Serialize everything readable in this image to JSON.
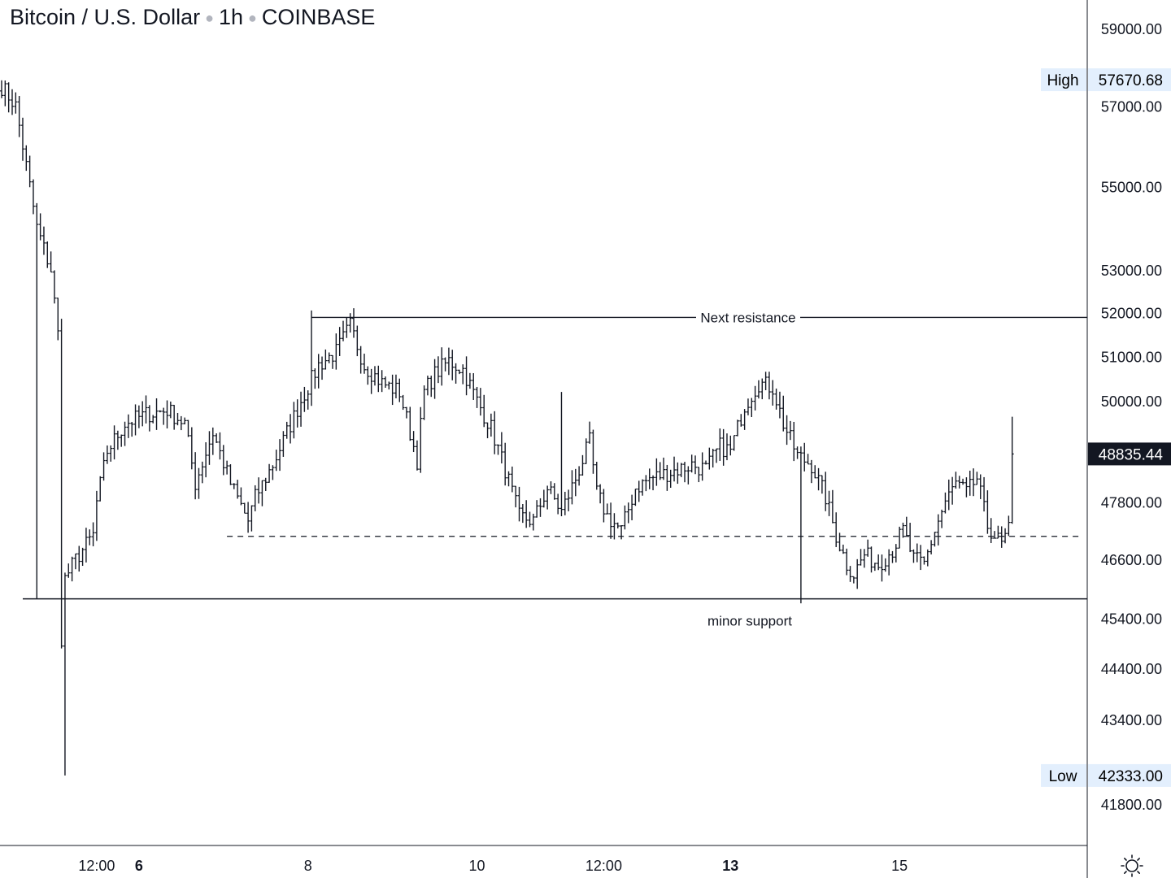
{
  "header": {
    "symbol": "Bitcoin / U.S. Dollar",
    "interval": "1h",
    "exchange": "COINBASE"
  },
  "colors": {
    "bars": "#131722",
    "tag_bg": "#e3effd",
    "last_price_bg": "#131722",
    "last_price_text": "#ffffff"
  },
  "chart_data": {
    "type": "ohlc",
    "title": "Bitcoin / U.S. Dollar · 1h · COINBASE",
    "y_scale": "log",
    "ylim": [
      41000,
      59800
    ],
    "y_ticks": [
      59000,
      57000,
      55000,
      53000,
      52000,
      51000,
      50000,
      47800,
      46600,
      45400,
      44400,
      43400,
      41800
    ],
    "y_tick_labels": [
      "59000.00",
      "57000.00",
      "55000.00",
      "53000.00",
      "52000.00",
      "51000.00",
      "50000.00",
      "47800.00",
      "46600.00",
      "45400.00",
      "44400.00",
      "43400.00",
      "41800.00"
    ],
    "x_ticks": [
      {
        "label": "12:00",
        "bar": 27,
        "bold": false
      },
      {
        "label": "6",
        "bar": 39,
        "bold": true
      },
      {
        "label": "8",
        "bar": 87,
        "bold": false
      },
      {
        "label": "10",
        "bar": 135,
        "bold": false
      },
      {
        "label": "12:00",
        "bar": 171,
        "bold": false
      },
      {
        "label": "13",
        "bar": 207,
        "bold": true
      },
      {
        "label": "15",
        "bar": 255,
        "bold": false
      }
    ],
    "high": {
      "label": "High",
      "value": "57670.68"
    },
    "low": {
      "label": "Low",
      "value": "42333.00"
    },
    "last_price": {
      "value": "48835.44",
      "price": 48835.44
    },
    "annotations": [
      {
        "text": "Next resistance",
        "price": 51890,
        "from_bar": 88,
        "to_bar": 310
      },
      {
        "text": "minor support",
        "price": 45790,
        "from_bar": 5,
        "to_bar": 310
      },
      {
        "text": "",
        "price": 47080,
        "from_bar": 64,
        "to_bar": 310,
        "style": "dashed"
      }
    ],
    "anchors": [
      [
        0,
        57500
      ],
      [
        4,
        57000
      ],
      [
        8,
        55000
      ],
      [
        10,
        54000
      ],
      [
        14,
        53000
      ],
      [
        16,
        51500
      ],
      [
        17,
        45000
      ],
      [
        18,
        46200
      ],
      [
        21,
        46600
      ],
      [
        26,
        47100
      ],
      [
        27,
        47800
      ],
      [
        30,
        48900
      ],
      [
        35,
        49500
      ],
      [
        41,
        49700
      ],
      [
        47,
        49800
      ],
      [
        52,
        49500
      ],
      [
        55,
        48200
      ],
      [
        60,
        49300
      ],
      [
        65,
        48200
      ],
      [
        70,
        47400
      ],
      [
        72,
        47900
      ],
      [
        77,
        48600
      ],
      [
        81,
        49300
      ],
      [
        85,
        50000
      ],
      [
        90,
        50800
      ],
      [
        95,
        51100
      ],
      [
        99,
        51700
      ],
      [
        103,
        50800
      ],
      [
        108,
        50400
      ],
      [
        113,
        50200
      ],
      [
        118,
        48700
      ],
      [
        120,
        50200
      ],
      [
        123,
        50600
      ],
      [
        127,
        50900
      ],
      [
        131,
        50700
      ],
      [
        135,
        50000
      ],
      [
        139,
        49400
      ],
      [
        143,
        48500
      ],
      [
        147,
        47500
      ],
      [
        151,
        47400
      ],
      [
        155,
        48100
      ],
      [
        159,
        47600
      ],
      [
        163,
        48300
      ],
      [
        167,
        49100
      ],
      [
        169,
        48000
      ],
      [
        172,
        47500
      ],
      [
        176,
        47200
      ],
      [
        180,
        48100
      ],
      [
        184,
        48300
      ],
      [
        188,
        48400
      ],
      [
        192,
        48500
      ],
      [
        196,
        48600
      ],
      [
        200,
        48500
      ],
      [
        204,
        49000
      ],
      [
        207,
        48900
      ],
      [
        211,
        49900
      ],
      [
        215,
        50400
      ],
      [
        219,
        50300
      ],
      [
        222,
        49500
      ],
      [
        226,
        48800
      ],
      [
        230,
        48600
      ],
      [
        234,
        47900
      ],
      [
        237,
        47100
      ],
      [
        240,
        46500
      ],
      [
        242,
        46300
      ],
      [
        245,
        46700
      ],
      [
        249,
        46500
      ],
      [
        253,
        46800
      ],
      [
        256,
        47200
      ],
      [
        259,
        46600
      ],
      [
        262,
        46500
      ],
      [
        265,
        47200
      ],
      [
        268,
        47800
      ],
      [
        271,
        48200
      ],
      [
        274,
        48000
      ],
      [
        277,
        48300
      ],
      [
        280,
        47300
      ],
      [
        284,
        46900
      ],
      [
        286,
        47200
      ],
      [
        287,
        48835
      ]
    ],
    "spikes": [
      {
        "bar": 10,
        "low": 45800
      },
      {
        "bar": 18,
        "low": 42333
      },
      {
        "bar": 88,
        "high": 52050
      },
      {
        "bar": 159,
        "high": 50200
      },
      {
        "bar": 227,
        "low": 45700
      },
      {
        "bar": 287,
        "high": 49650
      }
    ],
    "bar_count": 288
  }
}
